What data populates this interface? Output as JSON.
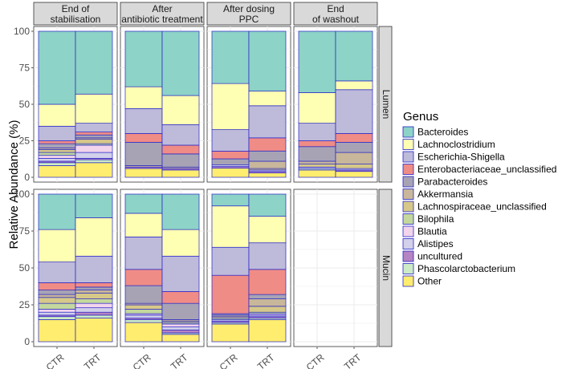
{
  "chart_data": {
    "type": "bar",
    "stacked": true,
    "ylabel": "Relative Abundance (%)",
    "xlabel": "",
    "ylim": [
      0,
      100
    ],
    "yticks": [
      0,
      25,
      50,
      75,
      100
    ],
    "legend_position": "right",
    "legend_title": "Genus",
    "facet_columns": [
      "End of\nstabilisation",
      "After\nantibiotic treatment",
      "After dosing\nPPC",
      "End\nof washout"
    ],
    "facet_rows": [
      "Lumen",
      "Mucin"
    ],
    "categories": [
      "CTR",
      "TRT"
    ],
    "genera": [
      {
        "name": "Bacteroides",
        "color": "#8DD3C7"
      },
      {
        "name": "Lachnoclostridium",
        "color": "#FFFFB3"
      },
      {
        "name": "Escherichia-Shigella",
        "color": "#BEBADA"
      },
      {
        "name": "Enterobacteriaceae_unclassified",
        "color": "#F08C86"
      },
      {
        "name": "Parabacteroides",
        "color": "#A7A3B5"
      },
      {
        "name": "Akkermansia",
        "color": "#C8B79A"
      },
      {
        "name": "Lachnospiraceae_unclassified",
        "color": "#D6C889"
      },
      {
        "name": "Bilophila",
        "color": "#C4D89E"
      },
      {
        "name": "Blautia",
        "color": "#F2D4EC"
      },
      {
        "name": "Alistipes",
        "color": "#D2D0EA"
      },
      {
        "name": "uncultured",
        "color": "#B584C2"
      },
      {
        "name": "Phascolarctobacterium",
        "color": "#CDEBC5"
      },
      {
        "name": "Other",
        "color": "#FFED6F"
      }
    ],
    "stack_order": [
      "Other",
      "Phascolarctobacterium",
      "uncultured",
      "Alistipes",
      "Blautia",
      "Bilophila",
      "Lachnospiraceae_unclassified",
      "Akkermansia",
      "Parabacteroides",
      "Enterobacteriaceae_unclassified",
      "Escherichia-Shigella",
      "Lachnoclostridium",
      "Bacteroides"
    ],
    "panels": [
      {
        "row": 0,
        "col": 0,
        "bars": [
          {
            "category": "CTR",
            "values": {
              "Other": 8,
              "Phascolarctobacterium": 2,
              "uncultured": 1,
              "Alistipes": 2,
              "Blautia": 2,
              "Bilophila": 2,
              "Lachnospiraceae_unclassified": 2,
              "Akkermansia": 1,
              "Parabacteroides": 3,
              "Enterobacteriaceae_unclassified": 2,
              "Escherichia-Shigella": 10,
              "Lachnoclostridium": 15,
              "Bacteroides": 50
            }
          },
          {
            "category": "TRT",
            "values": {
              "Other": 10,
              "Phascolarctobacterium": 2,
              "uncultured": 1,
              "Alistipes": 4,
              "Blautia": 5,
              "Bilophila": 1,
              "Lachnospiraceae_unclassified": 3,
              "Akkermansia": 1,
              "Parabacteroides": 2,
              "Enterobacteriaceae_unclassified": 2,
              "Escherichia-Shigella": 6,
              "Lachnoclostridium": 20,
              "Bacteroides": 43
            }
          }
        ]
      },
      {
        "row": 0,
        "col": 1,
        "bars": [
          {
            "category": "CTR",
            "values": {
              "Other": 6,
              "Phascolarctobacterium": 0,
              "uncultured": 1,
              "Alistipes": 0,
              "Blautia": 0,
              "Bilophila": 0,
              "Lachnospiraceae_unclassified": 0,
              "Akkermansia": 1,
              "Parabacteroides": 16,
              "Enterobacteriaceae_unclassified": 6,
              "Escherichia-Shigella": 17,
              "Lachnoclostridium": 15,
              "Bacteroides": 38
            }
          },
          {
            "category": "TRT",
            "values": {
              "Other": 5,
              "Phascolarctobacterium": 0,
              "uncultured": 1,
              "Alistipes": 0,
              "Blautia": 0,
              "Bilophila": 0,
              "Lachnospiraceae_unclassified": 0,
              "Akkermansia": 1,
              "Parabacteroides": 9,
              "Enterobacteriaceae_unclassified": 6,
              "Escherichia-Shigella": 14,
              "Lachnoclostridium": 20,
              "Bacteroides": 44
            }
          }
        ]
      },
      {
        "row": 0,
        "col": 2,
        "bars": [
          {
            "category": "CTR",
            "values": {
              "Other": 6,
              "Phascolarctobacterium": 0,
              "uncultured": 1,
              "Alistipes": 1,
              "Blautia": 0,
              "Bilophila": 0,
              "Lachnospiraceae_unclassified": 0,
              "Akkermansia": 0,
              "Parabacteroides": 4,
              "Enterobacteriaceae_unclassified": 5,
              "Escherichia-Shigella": 14,
              "Lachnoclostridium": 30,
              "Bacteroides": 34
            }
          },
          {
            "category": "TRT",
            "values": {
              "Other": 3,
              "Phascolarctobacterium": 0,
              "uncultured": 1,
              "Alistipes": 1,
              "Blautia": 0,
              "Bilophila": 0,
              "Lachnospiraceae_unclassified": 1,
              "Akkermansia": 5,
              "Parabacteroides": 7,
              "Enterobacteriaceae_unclassified": 9,
              "Escherichia-Shigella": 22,
              "Lachnoclostridium": 10,
              "Bacteroides": 41
            }
          }
        ]
      },
      {
        "row": 0,
        "col": 3,
        "bars": [
          {
            "category": "CTR",
            "values": {
              "Other": 5,
              "Phascolarctobacterium": 1,
              "uncultured": 0,
              "Alistipes": 1,
              "Blautia": 0,
              "Bilophila": 0,
              "Lachnospiraceae_unclassified": 2,
              "Akkermansia": 2,
              "Parabacteroides": 10,
              "Enterobacteriaceae_unclassified": 4,
              "Escherichia-Shigella": 12,
              "Lachnoclostridium": 21,
              "Bacteroides": 42
            }
          },
          {
            "category": "TRT",
            "values": {
              "Other": 4,
              "Phascolarctobacterium": 0,
              "uncultured": 1,
              "Alistipes": 1,
              "Blautia": 0,
              "Bilophila": 0,
              "Lachnospiraceae_unclassified": 3,
              "Akkermansia": 8,
              "Parabacteroides": 7,
              "Enterobacteriaceae_unclassified": 6,
              "Escherichia-Shigella": 30,
              "Lachnoclostridium": 6,
              "Bacteroides": 34
            }
          }
        ]
      },
      {
        "row": 1,
        "col": 0,
        "bars": [
          {
            "category": "CTR",
            "values": {
              "Other": 15,
              "Phascolarctobacterium": 2,
              "uncultured": 1,
              "Alistipes": 2,
              "Blautia": 2,
              "Bilophila": 4,
              "Lachnospiraceae_unclassified": 4,
              "Akkermansia": 2,
              "Parabacteroides": 3,
              "Enterobacteriaceae_unclassified": 5,
              "Escherichia-Shigella": 14,
              "Lachnoclostridium": 22,
              "Bacteroides": 24
            }
          },
          {
            "category": "TRT",
            "values": {
              "Other": 16,
              "Phascolarctobacterium": 2,
              "uncultured": 2,
              "Alistipes": 3,
              "Blautia": 3,
              "Bilophila": 3,
              "Lachnospiraceae_unclassified": 4,
              "Akkermansia": 2,
              "Parabacteroides": 2,
              "Enterobacteriaceae_unclassified": 3,
              "Escherichia-Shigella": 18,
              "Lachnoclostridium": 26,
              "Bacteroides": 16
            }
          }
        ]
      },
      {
        "row": 1,
        "col": 1,
        "bars": [
          {
            "category": "CTR",
            "values": {
              "Other": 13,
              "Phascolarctobacterium": 2,
              "uncultured": 1,
              "Alistipes": 2,
              "Blautia": 1,
              "Bilophila": 3,
              "Lachnospiraceae_unclassified": 3,
              "Akkermansia": 1,
              "Parabacteroides": 12,
              "Enterobacteriaceae_unclassified": 11,
              "Escherichia-Shigella": 22,
              "Lachnoclostridium": 16,
              "Bacteroides": 13
            }
          },
          {
            "category": "TRT",
            "values": {
              "Other": 5,
              "Phascolarctobacterium": 1,
              "uncultured": 2,
              "Alistipes": 2,
              "Blautia": 2,
              "Bilophila": 1,
              "Lachnospiraceae_unclassified": 1,
              "Akkermansia": 1,
              "Parabacteroides": 11,
              "Enterobacteriaceae_unclassified": 8,
              "Escherichia-Shigella": 24,
              "Lachnoclostridium": 18,
              "Bacteroides": 24
            }
          }
        ]
      },
      {
        "row": 1,
        "col": 2,
        "bars": [
          {
            "category": "CTR",
            "values": {
              "Other": 12,
              "Phascolarctobacterium": 1,
              "uncultured": 1,
              "Alistipes": 1,
              "Blautia": 0,
              "Bilophila": 1,
              "Lachnospiraceae_unclassified": 1,
              "Akkermansia": 1,
              "Parabacteroides": 1,
              "Enterobacteriaceae_unclassified": 26,
              "Escherichia-Shigella": 19,
              "Lachnoclostridium": 28,
              "Bacteroides": 8
            }
          },
          {
            "category": "TRT",
            "values": {
              "Other": 15,
              "Phascolarctobacterium": 1,
              "uncultured": 1,
              "Alistipes": 1,
              "Blautia": 1,
              "Bilophila": 1,
              "Lachnospiraceae_unclassified": 4,
              "Akkermansia": 5,
              "Parabacteroides": 3,
              "Enterobacteriaceae_unclassified": 17,
              "Escherichia-Shigella": 18,
              "Lachnoclostridium": 18,
              "Bacteroides": 15
            }
          }
        ]
      },
      {
        "row": 1,
        "col": 3,
        "bars": []
      }
    ]
  }
}
